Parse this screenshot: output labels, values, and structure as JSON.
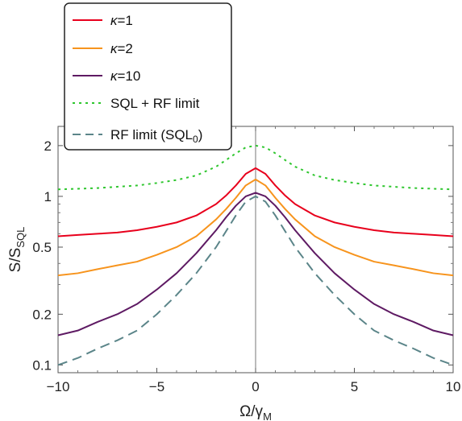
{
  "chart_data": {
    "type": "line",
    "xlabel": "Ω/γ",
    "xlabel_sub": "M",
    "ylabel": "S/S",
    "ylabel_sub": "SQL",
    "x_scale": "linear",
    "y_scale": "log",
    "xlim": [
      -10,
      10
    ],
    "ylim": [
      0.09,
      2.6
    ],
    "x_ticks": [
      -10,
      -5,
      0,
      5,
      10
    ],
    "x_tick_labels": [
      "−10",
      "−5",
      "0",
      "5",
      "10"
    ],
    "y_ticks": [
      0.1,
      0.2,
      0.5,
      1,
      2
    ],
    "y_tick_labels": [
      "0.1",
      "0.2",
      "0.5",
      "1",
      "2"
    ],
    "legend_position": "top-left",
    "vertical_reference_line_at_x": 0,
    "x": [
      -10,
      -9,
      -8,
      -7,
      -6,
      -5,
      -4,
      -3,
      -2,
      -1.5,
      -1,
      -0.5,
      0,
      0.5,
      1,
      1.5,
      2,
      3,
      4,
      5,
      6,
      7,
      8,
      9,
      10
    ],
    "series": [
      {
        "name_prefix": "κ",
        "name_suffix": "=1",
        "color": "#e8001c",
        "style": "solid",
        "values": [
          0.58,
          0.59,
          0.6,
          0.61,
          0.63,
          0.66,
          0.7,
          0.77,
          0.9,
          1.01,
          1.16,
          1.36,
          1.47,
          1.36,
          1.16,
          1.01,
          0.9,
          0.77,
          0.7,
          0.66,
          0.63,
          0.61,
          0.6,
          0.59,
          0.58
        ]
      },
      {
        "name_prefix": "κ",
        "name_suffix": "=2",
        "color": "#f7941d",
        "style": "solid",
        "values": [
          0.34,
          0.35,
          0.37,
          0.39,
          0.41,
          0.45,
          0.5,
          0.58,
          0.73,
          0.84,
          0.98,
          1.16,
          1.26,
          1.16,
          0.98,
          0.84,
          0.73,
          0.58,
          0.5,
          0.45,
          0.41,
          0.39,
          0.37,
          0.35,
          0.34
        ]
      },
      {
        "name_prefix": "κ",
        "name_suffix": "=10",
        "color": "#5e1a63",
        "style": "solid",
        "values": [
          0.15,
          0.16,
          0.18,
          0.2,
          0.23,
          0.28,
          0.35,
          0.46,
          0.63,
          0.75,
          0.88,
          1.0,
          1.05,
          1.0,
          0.88,
          0.75,
          0.63,
          0.46,
          0.35,
          0.28,
          0.23,
          0.2,
          0.18,
          0.16,
          0.15
        ]
      },
      {
        "name": "SQL + RF limit",
        "color": "#2ec62e",
        "style": "dotted",
        "values": [
          1.1,
          1.11,
          1.12,
          1.14,
          1.16,
          1.2,
          1.25,
          1.33,
          1.5,
          1.64,
          1.8,
          1.95,
          2.0,
          1.95,
          1.8,
          1.64,
          1.5,
          1.33,
          1.25,
          1.2,
          1.16,
          1.14,
          1.12,
          1.11,
          1.1
        ]
      },
      {
        "name_prefix": "RF limit (SQL",
        "name_sub": "0",
        "name_suffix": ")",
        "color": "#5b8589",
        "style": "dashed",
        "values": [
          0.1,
          0.11,
          0.125,
          0.14,
          0.16,
          0.2,
          0.26,
          0.35,
          0.5,
          0.62,
          0.77,
          0.93,
          1.0,
          0.93,
          0.77,
          0.62,
          0.5,
          0.35,
          0.26,
          0.2,
          0.16,
          0.14,
          0.125,
          0.11,
          0.1
        ]
      }
    ]
  }
}
